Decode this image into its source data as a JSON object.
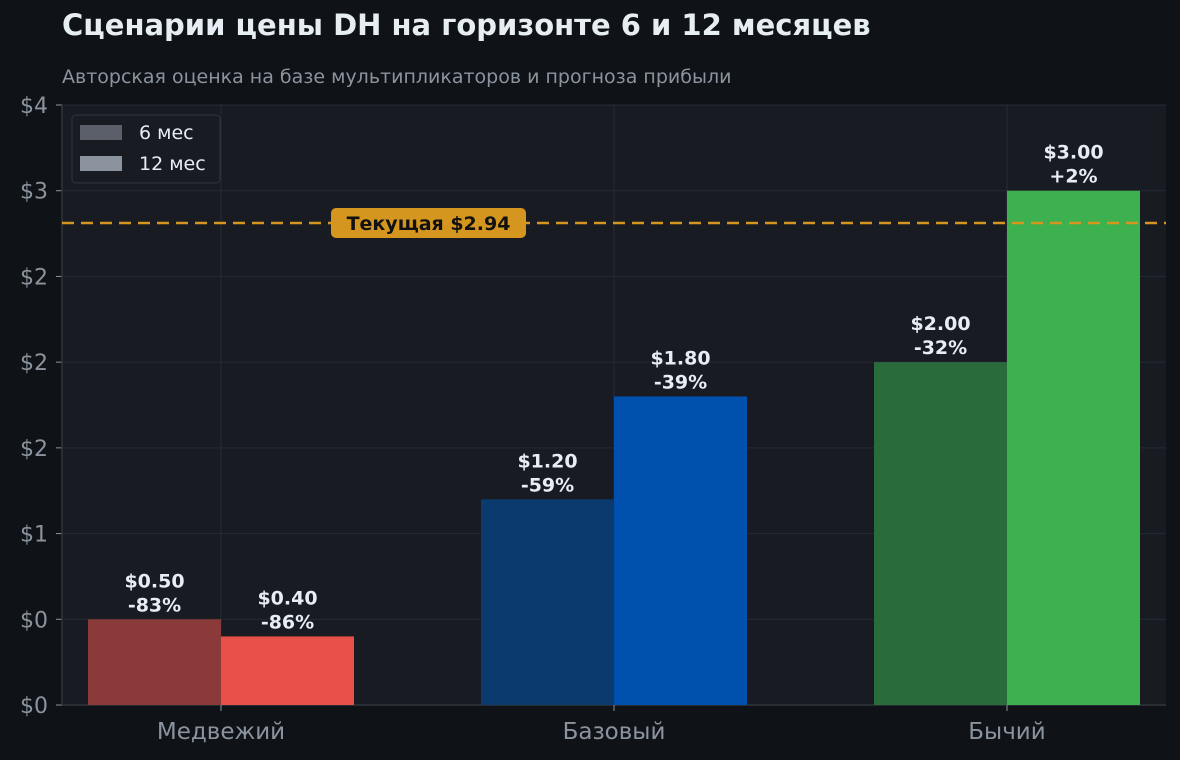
{
  "title": "Сценарии цены DH на горизонте 6 и 12 месяцев",
  "subtitle": "Авторская оценка на базе мультипликаторов и прогноза прибыли",
  "chart_data": {
    "type": "bar",
    "categories": [
      "Медвежий",
      "Базовый",
      "Бычий"
    ],
    "series": [
      {
        "name": "6 мес",
        "values": [
          0.5,
          1.2,
          2.0
        ],
        "labels": [
          "$0.50\n-83%",
          "$1.20\n-59%",
          "$2.00\n-32%"
        ],
        "colors": [
          "#8b3a3a",
          "#0b3a6e",
          "#2a6b3c"
        ]
      },
      {
        "name": "12 мес",
        "values": [
          0.4,
          1.8,
          3.0
        ],
        "labels": [
          "$0.40\n-86%",
          "$1.80\n-39%",
          "$3.00\n+2%"
        ],
        "colors": [
          "#e8504a",
          "#0050ad",
          "#3db14f"
        ]
      }
    ],
    "reference_line": {
      "value": 2.94,
      "label": "Текущая $2.94",
      "color": "#d4961e"
    },
    "ylim": [
      0,
      3.5
    ],
    "yticks": [
      0,
      0.5,
      1.0,
      1.5,
      2.0,
      2.5,
      3.0,
      3.5
    ],
    "ytick_labels": [
      "$0",
      "$0",
      "$1",
      "$2",
      "$2",
      "$2",
      "$3",
      "$4"
    ],
    "legend": {
      "position": "top-left",
      "entries": [
        "6 мес",
        "12 мес"
      ],
      "swatch_colors": [
        "#5a5f69",
        "#8b949e"
      ]
    },
    "grid": true,
    "xlabel": "",
    "ylabel": ""
  }
}
